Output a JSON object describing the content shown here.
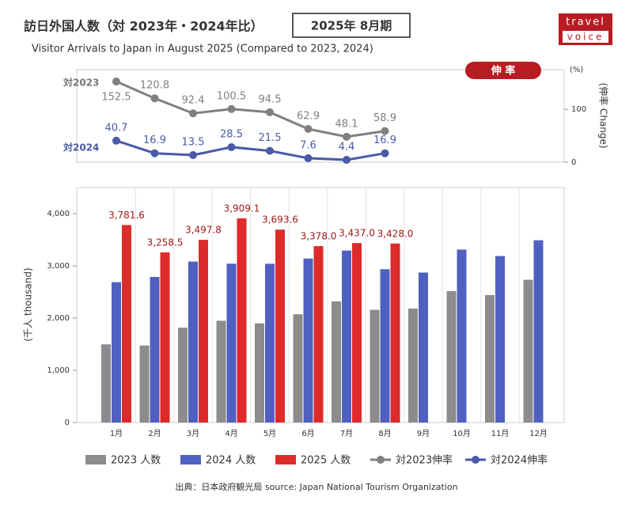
{
  "title": "訪日外国人数（対 2023年・2024年比）",
  "badge": "2025年 8月期",
  "subtitle": "Visitor Arrivals to Japan in August 2025 (Compared to 2023, 2024)",
  "logo": [
    "travel",
    "voice"
  ],
  "source": "出典：日本政府観光局  source: Japan National Tourism Organization",
  "chart_data": [
    {
      "type": "line",
      "label": "伸 率",
      "unit": "(%)",
      "ylabel": "(伸率 Change)",
      "annotations": [
        "対2023",
        "対2024"
      ],
      "categories": [
        "1月",
        "2月",
        "3月",
        "4月",
        "5月",
        "6月",
        "7月",
        "8月",
        "9月",
        "10月",
        "11月",
        "12月"
      ],
      "series": [
        {
          "name": "対2023伸率",
          "color": "#808080",
          "values": [
            152.5,
            120.8,
            92.4,
            100.5,
            94.5,
            62.9,
            48.1,
            58.9,
            null,
            null,
            null,
            null
          ]
        },
        {
          "name": "対2024伸率",
          "color": "#4a5aa8",
          "values": [
            40.7,
            16.9,
            13.5,
            28.5,
            21.5,
            7.6,
            4.4,
            16.9,
            null,
            null,
            null,
            null
          ]
        }
      ],
      "ylim": [
        0,
        175
      ],
      "yticks": [
        0,
        100
      ]
    },
    {
      "type": "bar",
      "ylabel": "(千人 thousand)",
      "categories": [
        "1月",
        "2月",
        "3月",
        "4月",
        "5月",
        "6月",
        "7月",
        "8月",
        "9月",
        "10月",
        "11月",
        "12月"
      ],
      "series": [
        {
          "name": "2023 人数",
          "color": "#8c8c8c",
          "values": [
            1497,
            1475,
            1817,
            1949,
            1899,
            2073,
            2320,
            2158,
            2183,
            2517,
            2441,
            2734
          ]
        },
        {
          "name": "2024 人数",
          "color": "#5060c0",
          "values": [
            2688,
            2788,
            3082,
            3042,
            3040,
            3140,
            3293,
            2936,
            2872,
            3312,
            3188,
            3490
          ]
        },
        {
          "name": "2025 人数",
          "color": "#dd2a2a",
          "values": [
            3781.6,
            3258.5,
            3497.8,
            3909.1,
            3693.6,
            3378.0,
            3437.0,
            3428.0,
            null,
            null,
            null,
            null
          ],
          "value_labels": [
            "3,781.6",
            "3,258.5",
            "3,497.8",
            "3,909.1",
            "3,693.6",
            "3,378.0",
            "3,437.0",
            "3,428.0",
            null,
            null,
            null,
            null
          ]
        }
      ],
      "ylim": [
        0,
        4500
      ],
      "yticks": [
        0,
        {
          "value": 1000,
          "label": "1,000"
        },
        {
          "value": 2000,
          "label": "2,000"
        },
        {
          "value": 3000,
          "label": "3,000"
        },
        {
          "value": 4000,
          "label": "4,000"
        }
      ]
    }
  ]
}
